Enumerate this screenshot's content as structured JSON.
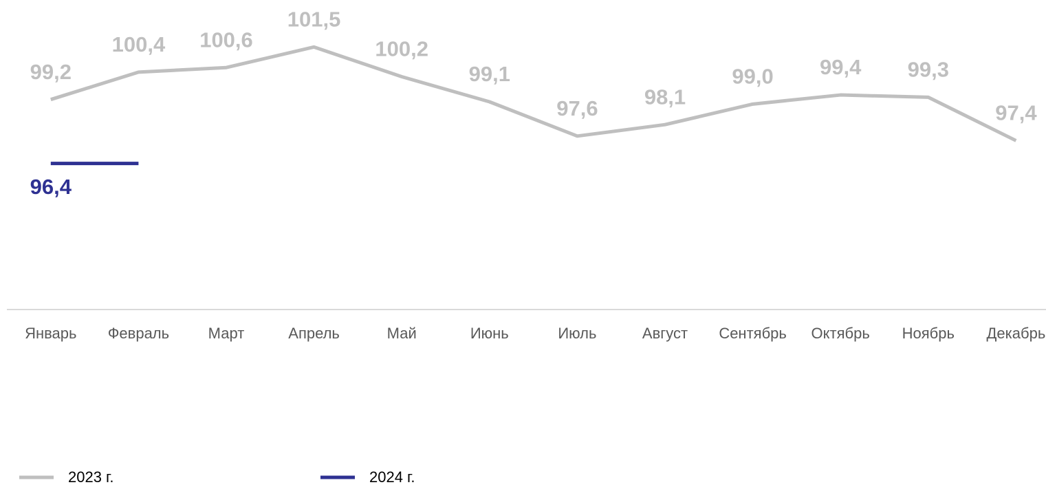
{
  "chart_data": {
    "type": "line",
    "categories": [
      "Январь",
      "Февраль",
      "Март",
      "Апрель",
      "Май",
      "Июнь",
      "Июль",
      "Август",
      "Сентябрь",
      "Октябрь",
      "Ноябрь",
      "Декабрь"
    ],
    "series": [
      {
        "name": "2023 г.",
        "color": "#bfbfbf",
        "values": [
          99.2,
          100.4,
          100.6,
          101.5,
          100.2,
          99.1,
          97.6,
          98.1,
          99.0,
          99.4,
          99.3,
          97.4
        ],
        "value_labels": [
          "99,2",
          "100,4",
          "100,6",
          "101,5",
          "100,2",
          "99,1",
          "97,6",
          "98,1",
          "99,0",
          "99,4",
          "99,3",
          "97,4"
        ]
      },
      {
        "name": "2024 г.",
        "color": "#2e3192",
        "values": [
          96.4,
          96.4,
          null,
          null,
          null,
          null,
          null,
          null,
          null,
          null,
          null,
          null
        ],
        "value_labels": [
          "96,4",
          null,
          null,
          null,
          null,
          null,
          null,
          null,
          null,
          null,
          null,
          null
        ]
      }
    ],
    "ylim": [
      90,
      103.5
    ],
    "legend": "bottom-left"
  }
}
